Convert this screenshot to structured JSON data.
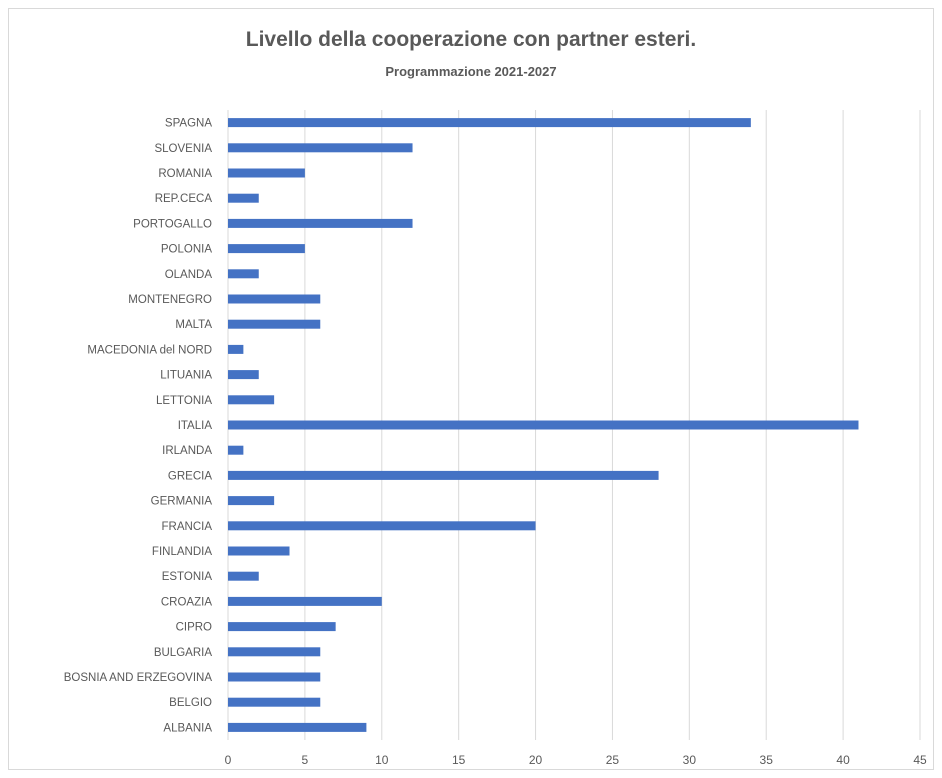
{
  "chart_data": {
    "type": "bar",
    "orientation": "horizontal",
    "title": "Livello della cooperazione con partner esteri.",
    "subtitle": "Programmazione 2021-2027",
    "xlabel": "",
    "ylabel": "",
    "xlim": [
      0,
      45
    ],
    "xticks": [
      0,
      5,
      10,
      15,
      20,
      25,
      30,
      35,
      40,
      45
    ],
    "grid": "vertical",
    "legend": "none",
    "bar_color": "#4472c4",
    "categories": [
      "SPAGNA",
      "SLOVENIA",
      "ROMANIA",
      "REP.CECA",
      "PORTOGALLO",
      "POLONIA",
      "OLANDA",
      "MONTENEGRO",
      "MALTA",
      "MACEDONIA del NORD",
      "LITUANIA",
      "LETTONIA",
      "ITALIA",
      "IRLANDA",
      "GRECIA",
      "GERMANIA",
      "FRANCIA",
      "FINLANDIA",
      "ESTONIA",
      "CROAZIA",
      "CIPRO",
      "BULGARIA",
      "BOSNIA AND ERZEGOVINA",
      "BELGIO",
      "ALBANIA"
    ],
    "values": [
      34,
      12,
      5,
      2,
      12,
      5,
      2,
      6,
      6,
      1,
      2,
      3,
      41,
      1,
      28,
      3,
      20,
      4,
      2,
      10,
      7,
      6,
      6,
      6,
      9
    ]
  }
}
